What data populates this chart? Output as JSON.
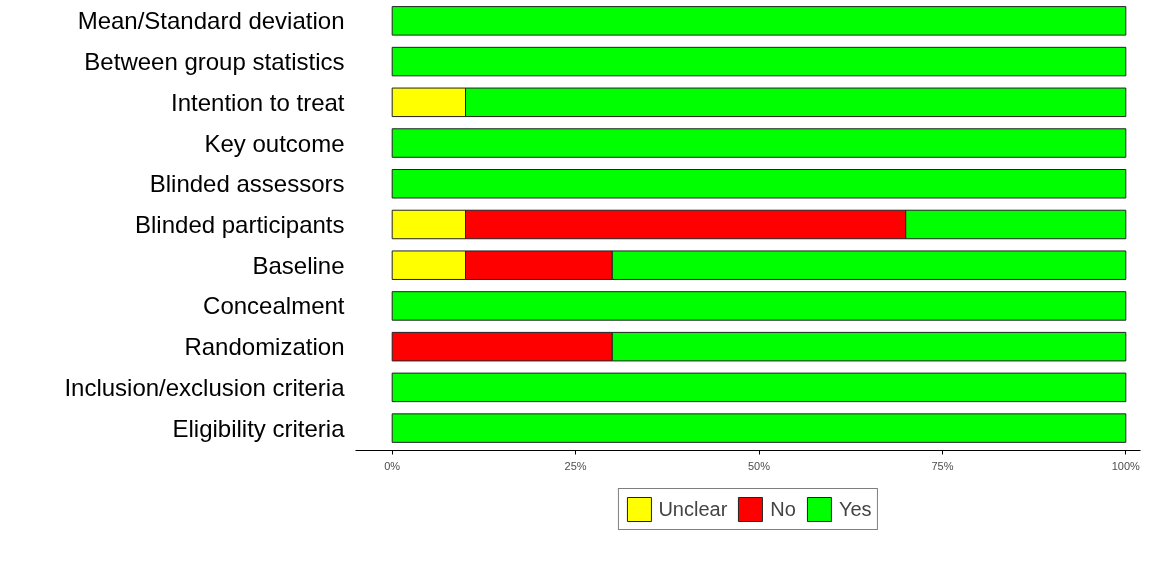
{
  "chart_data": {
    "type": "bar",
    "orientation": "horizontal",
    "stacked": true,
    "categories": [
      "Mean/Standard deviation",
      "Between group statistics",
      "Intention to treat",
      "Key outcome",
      "Blinded assessors",
      "Blinded participants",
      "Baseline",
      "Concealment",
      "Randomization",
      "Inclusion/exclusion criteria",
      "Eligibility criteria"
    ],
    "series": [
      {
        "name": "Unclear",
        "color": "#ffff00",
        "values": [
          0,
          0,
          10,
          0,
          0,
          10,
          10,
          0,
          0,
          0,
          0
        ]
      },
      {
        "name": "No",
        "color": "#ff0000",
        "values": [
          0,
          0,
          0,
          0,
          0,
          60,
          20,
          0,
          30,
          0,
          0
        ]
      },
      {
        "name": "Yes",
        "color": "#00ff00",
        "values": [
          100,
          100,
          90,
          100,
          100,
          30,
          70,
          100,
          70,
          100,
          100
        ]
      }
    ],
    "xlim": [
      -5,
      102
    ],
    "xticks": [
      {
        "value": 0,
        "label": "0%"
      },
      {
        "value": 25,
        "label": "25%"
      },
      {
        "value": 50,
        "label": "50%"
      },
      {
        "value": 75,
        "label": "75%"
      },
      {
        "value": 100,
        "label": "100%"
      }
    ],
    "grid": false,
    "legend": "bottom"
  }
}
